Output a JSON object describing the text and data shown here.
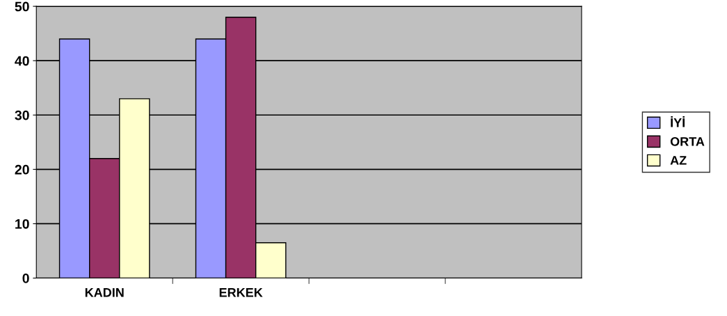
{
  "chart_data": {
    "type": "bar",
    "categories": [
      "KADIN",
      "ERKEK",
      null,
      null
    ],
    "series": [
      {
        "name": "İYİ",
        "color": "#9999ff",
        "values": [
          44,
          44,
          null,
          null
        ]
      },
      {
        "name": "ORTA",
        "color": "#993366",
        "values": [
          22,
          48,
          null,
          null
        ]
      },
      {
        "name": "AZ",
        "color": "#ffffcc",
        "values": [
          33,
          6.5,
          null,
          null
        ]
      }
    ],
    "ylim": [
      0,
      50
    ],
    "yticks": [
      0,
      10,
      20,
      30,
      40,
      50
    ],
    "grid": "y",
    "legend": "right"
  }
}
